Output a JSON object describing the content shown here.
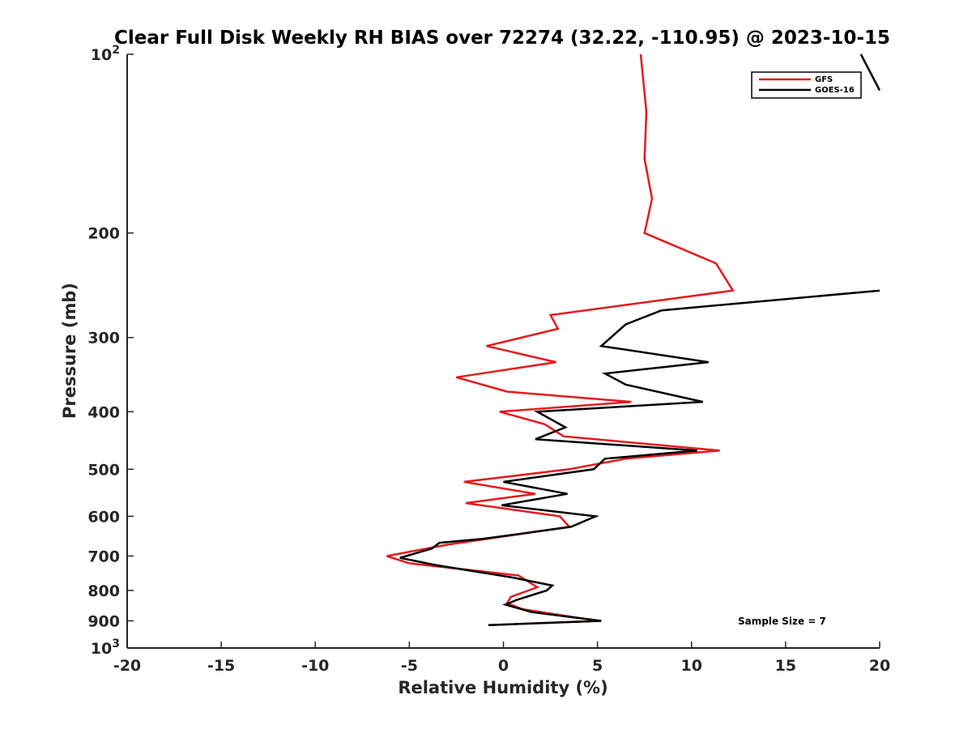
{
  "chart_data": {
    "type": "line",
    "title": "Clear Full Disk Weekly RH BIAS over 72274 (32.22, -110.95) @ 2023-10-15",
    "xlabel": "Relative Humidity (%)",
    "ylabel": "Pressure (mb)",
    "xlim": [
      -20,
      20
    ],
    "ylim": [
      100,
      1000
    ],
    "y_scale": "log",
    "y_reversed": true,
    "x_ticks": [
      -20,
      -15,
      -10,
      -5,
      0,
      5,
      10,
      15,
      20
    ],
    "x_tick_labels": [
      "-20",
      "-15",
      "-10",
      "-5",
      "0",
      "5",
      "10",
      "15",
      "20"
    ],
    "y_ticks": [
      100,
      200,
      300,
      400,
      500,
      600,
      700,
      800,
      900,
      1000
    ],
    "y_tick_labels": [
      {
        "base": "10",
        "exp": "2"
      },
      {
        "base": "200",
        "exp": ""
      },
      {
        "base": "300",
        "exp": ""
      },
      {
        "base": "400",
        "exp": ""
      },
      {
        "base": "500",
        "exp": ""
      },
      {
        "base": "600",
        "exp": ""
      },
      {
        "base": "700",
        "exp": ""
      },
      {
        "base": "800",
        "exp": ""
      },
      {
        "base": "900",
        "exp": ""
      },
      {
        "base": "10",
        "exp": "3"
      }
    ],
    "grid": false,
    "legend_position": "top-right",
    "annotation": "Sample Size = 7",
    "series": [
      {
        "name": "GFS",
        "color": "#e41a1c",
        "points": [
          [
            7.3,
            100
          ],
          [
            7.6,
            125
          ],
          [
            7.5,
            150
          ],
          [
            7.9,
            175
          ],
          [
            7.5,
            200
          ],
          [
            11.3,
            225
          ],
          [
            12.2,
            250
          ],
          [
            2.5,
            275
          ],
          [
            2.9,
            290
          ],
          [
            -0.9,
            310
          ],
          [
            2.8,
            330
          ],
          [
            -2.5,
            350
          ],
          [
            0.2,
            370
          ],
          [
            6.8,
            385
          ],
          [
            -0.2,
            400
          ],
          [
            2.2,
            420
          ],
          [
            3.2,
            440
          ],
          [
            11.5,
            465
          ],
          [
            6.5,
            480
          ],
          [
            3.5,
            500
          ],
          [
            -2.1,
            525
          ],
          [
            1.7,
            550
          ],
          [
            -2.0,
            570
          ],
          [
            3.0,
            600
          ],
          [
            3.5,
            625
          ],
          [
            -3.0,
            670
          ],
          [
            -6.2,
            700
          ],
          [
            -5.0,
            720
          ],
          [
            0.8,
            755
          ],
          [
            1.8,
            790
          ],
          [
            0.4,
            820
          ],
          [
            0.2,
            840
          ],
          [
            1.0,
            860
          ],
          [
            4.0,
            890
          ],
          [
            5.1,
            900
          ],
          [
            -0.8,
            915
          ]
        ]
      },
      {
        "name": "GOES-16",
        "color": "#000000",
        "points": [
          [
            20.0,
            250
          ],
          [
            8.4,
            270
          ],
          [
            6.5,
            285
          ],
          [
            5.2,
            310
          ],
          [
            10.9,
            330
          ],
          [
            5.4,
            345
          ],
          [
            6.5,
            360
          ],
          [
            10.6,
            385
          ],
          [
            1.8,
            400
          ],
          [
            3.3,
            425
          ],
          [
            1.7,
            445
          ],
          [
            10.3,
            465
          ],
          [
            5.4,
            480
          ],
          [
            4.8,
            500
          ],
          [
            0.0,
            525
          ],
          [
            3.4,
            550
          ],
          [
            -0.1,
            575
          ],
          [
            4.9,
            600
          ],
          [
            3.6,
            625
          ],
          [
            -1.1,
            655
          ],
          [
            -3.4,
            665
          ],
          [
            -3.8,
            680
          ],
          [
            -5.5,
            705
          ],
          [
            -3.6,
            725
          ],
          [
            0.4,
            760
          ],
          [
            2.6,
            785
          ],
          [
            2.3,
            800
          ],
          [
            0.7,
            830
          ],
          [
            0.1,
            845
          ],
          [
            1.5,
            870
          ],
          [
            5.2,
            900
          ],
          [
            -0.8,
            915
          ]
        ]
      },
      {
        "name": "",
        "color": "#000000",
        "points": [
          [
            19.0,
            100
          ],
          [
            20.0,
            115
          ]
        ]
      }
    ]
  }
}
